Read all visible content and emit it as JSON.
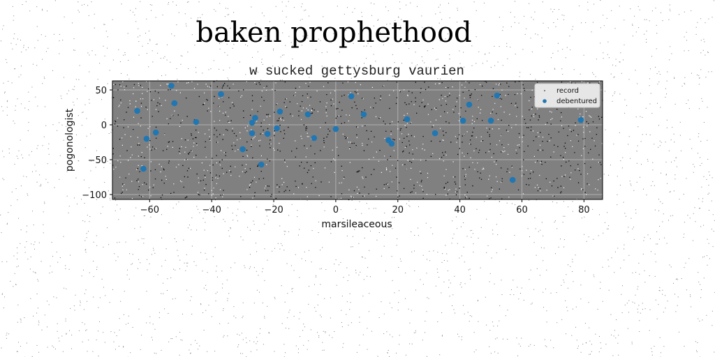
{
  "figure": {
    "suptitle": "baken prophethood"
  },
  "chart_data": {
    "type": "scatter",
    "title": "w sucked gettysburg vaurien",
    "xlabel": "marsileaceous",
    "ylabel": "pogonologist",
    "xlim": [
      -72,
      86
    ],
    "ylim": [
      -107,
      63
    ],
    "xticks": [
      -60,
      -40,
      -20,
      0,
      20,
      40,
      60,
      80
    ],
    "yticks": [
      -100,
      -50,
      0,
      50
    ],
    "xtick_labels": [
      "−60",
      "−40",
      "−20",
      "0",
      "20",
      "40",
      "60",
      "80"
    ],
    "ytick_labels": [
      "−100",
      "−50",
      "0",
      "50"
    ],
    "grid": true,
    "legend_position": "top-right",
    "background": "#808080",
    "series": [
      {
        "name": "record",
        "marker": "tiny-dots-noise",
        "color": "#000000"
      },
      {
        "name": "debentured",
        "color": "#1f77b4",
        "x": [
          -64,
          -62,
          -61,
          -58,
          -53,
          -52,
          -45,
          -37,
          -30,
          -27,
          -27,
          -26,
          -24,
          -22,
          -19,
          -18,
          -9,
          -7,
          0,
          5,
          9,
          17,
          18,
          23,
          32,
          41,
          43,
          50,
          52,
          57,
          79
        ],
        "y": [
          20,
          -63,
          -20,
          -11,
          56,
          31,
          4,
          44,
          -35,
          3,
          -12,
          10,
          -57,
          -13,
          -5,
          19,
          15,
          -19,
          -6,
          41,
          15,
          -22,
          -27,
          8,
          -12,
          6,
          29,
          6,
          42,
          -79,
          7
        ]
      }
    ]
  }
}
